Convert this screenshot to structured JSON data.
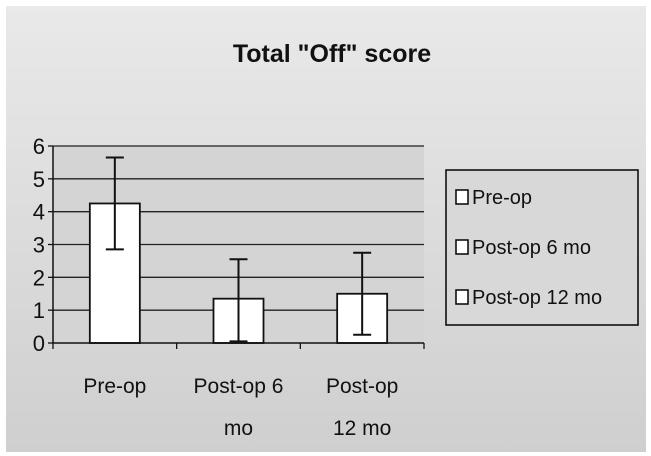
{
  "chart_data": {
    "type": "bar",
    "title": "Total \"Off\" score",
    "categories": [
      [
        "Pre-op"
      ],
      [
        "Post-op 6",
        "mo"
      ],
      [
        "Post-op",
        "12 mo"
      ]
    ],
    "values": [
      4.25,
      1.35,
      1.5
    ],
    "error_bars": [
      {
        "low": 2.85,
        "high": 5.65
      },
      {
        "low": 0.05,
        "high": 2.55
      },
      {
        "low": 0.25,
        "high": 2.75
      }
    ],
    "ylim": [
      0,
      6
    ],
    "yticks": [
      0,
      1,
      2,
      3,
      4,
      5,
      6
    ],
    "grid": true,
    "legend": {
      "position": "right",
      "entries": [
        "Pre-op",
        "Post-op 6 mo",
        "Post-op 12 mo"
      ]
    },
    "colors": {
      "bar_fill": "#ffffff",
      "bar_stroke": "#111111",
      "plot_bg": "#d4d4d4",
      "grid": "#222222"
    }
  }
}
